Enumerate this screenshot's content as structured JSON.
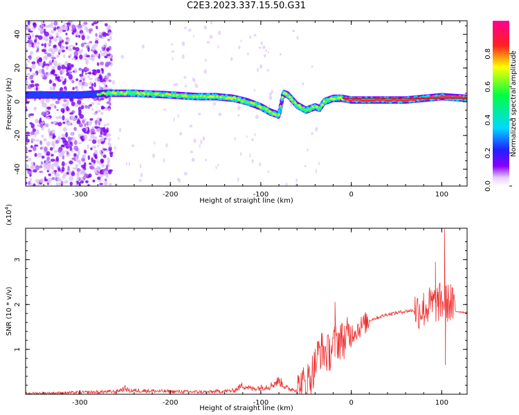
{
  "title": "C2E3.2023.337.15.50.G31",
  "chart_data": [
    {
      "type": "heatmap",
      "xlabel": "Height of straight line (km)",
      "ylabel": "Frequency (Hz)",
      "xlim": [
        -360,
        128
      ],
      "ylim": [
        -50,
        48
      ],
      "x_ticks": [
        -300,
        -200,
        -100,
        0,
        100
      ],
      "y_ticks": [
        -40,
        -20,
        0,
        20,
        40
      ],
      "colorbar": {
        "label": "Normalized spectral amplitude",
        "range": [
          0,
          1
        ],
        "ticks": [
          "0.0",
          "0.2",
          "0.4",
          "0.6",
          "0.8"
        ]
      },
      "ridge": {
        "x": [
          -360,
          -330,
          -300,
          -270,
          -240,
          -200,
          -170,
          -150,
          -130,
          -115,
          -100,
          -90,
          -80,
          -75,
          -70,
          -60,
          -50,
          -40,
          -35,
          -30,
          -20,
          -10,
          0,
          20,
          40,
          60,
          80,
          100,
          128
        ],
        "y": [
          4,
          4,
          4,
          5,
          5,
          4,
          3,
          3,
          2,
          0,
          -3,
          -6,
          -8,
          5,
          4,
          -2,
          -5,
          -3,
          -4,
          0,
          2,
          2,
          1,
          1,
          1,
          1,
          2,
          3,
          2
        ]
      },
      "noise_region": [
        -360,
        -265
      ]
    },
    {
      "type": "line",
      "xlabel": "Height of straight line (km)",
      "ylabel": "SNR (10 * v/v)",
      "y_multiplier": "(x10",
      "y_multiplier_exp": "4",
      "xlim": [
        -360,
        128
      ],
      "ylim": [
        0,
        3.7
      ],
      "x_ticks": [
        -300,
        -200,
        -100,
        0,
        100
      ],
      "y_ticks": [
        1,
        2,
        3
      ],
      "color": "#ee2c2c",
      "series": [
        {
          "x": [
            -360,
            -320,
            -280,
            -260,
            -250,
            -245,
            -230,
            -200,
            -160,
            -130,
            -120,
            -110,
            -100,
            -90,
            -80,
            -70,
            -60,
            -50,
            -45,
            -40,
            -35,
            -30,
            -25,
            -20,
            -15,
            -10,
            0,
            10,
            20,
            40,
            60,
            70,
            80,
            90,
            100,
            110,
            115,
            128
          ],
          "y": [
            0.02,
            0.03,
            0.05,
            0.06,
            0.13,
            0.08,
            0.08,
            0.06,
            0.05,
            0.08,
            0.2,
            0.12,
            0.15,
            0.18,
            0.3,
            0.12,
            0.1,
            0.25,
            0.4,
            0.65,
            1.0,
            0.95,
            0.9,
            1.1,
            1.2,
            1.2,
            1.35,
            1.5,
            1.65,
            1.78,
            1.85,
            1.87,
            1.9,
            2.0,
            2.05,
            2.02,
            1.85,
            1.82
          ]
        }
      ],
      "spikes": [
        {
          "x": -18,
          "y": 2.06
        },
        {
          "x": -12,
          "y": 1.55
        },
        {
          "x": 93,
          "y": 2.95
        },
        {
          "x": 103,
          "y": 3.68
        },
        {
          "x": 104,
          "y": 0.65
        },
        {
          "x": 110,
          "y": 2.45
        }
      ]
    }
  ]
}
